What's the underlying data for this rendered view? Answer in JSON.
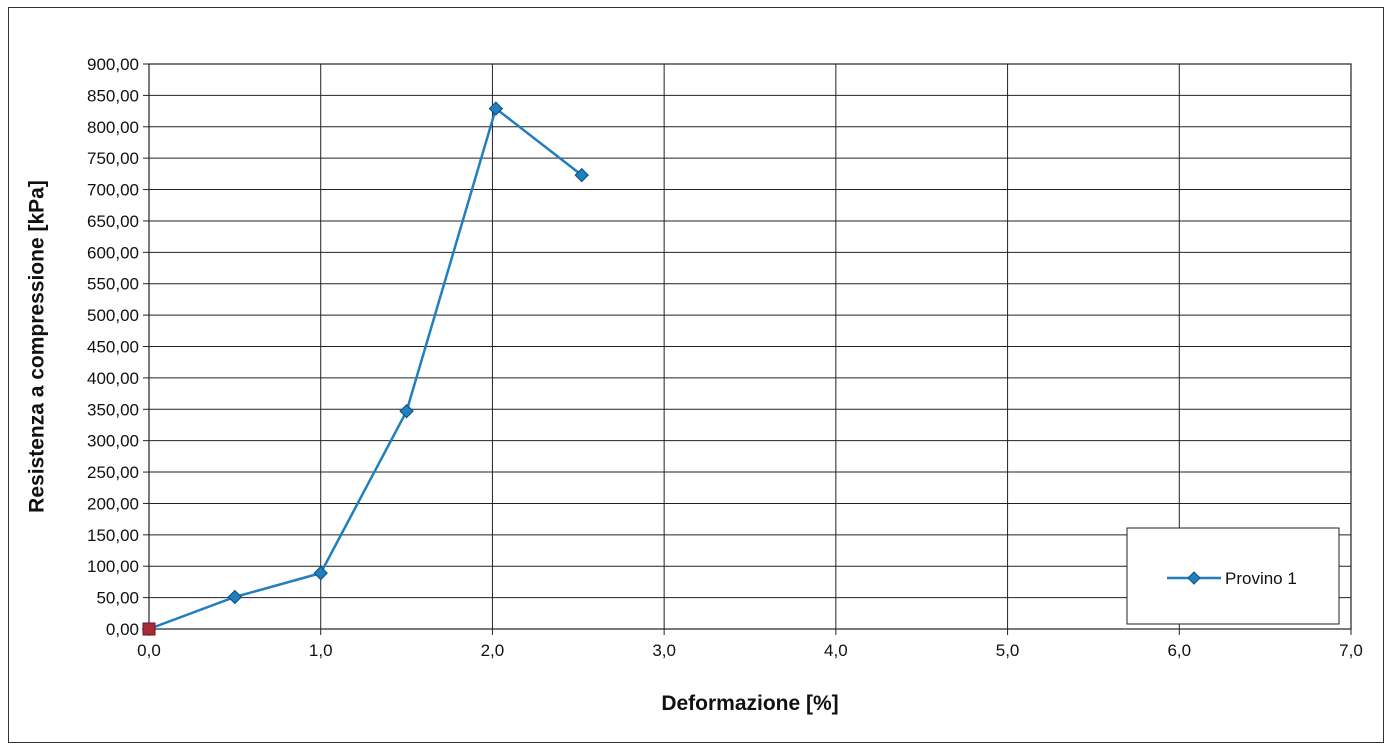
{
  "chart_data": {
    "type": "line",
    "title": "",
    "xlabel": "Deformazione [%]",
    "ylabel": "Resistenza a compressione [kPa]",
    "xlim": [
      0,
      7
    ],
    "ylim": [
      0,
      900
    ],
    "x_ticks": [
      0,
      1,
      2,
      3,
      4,
      5,
      6,
      7
    ],
    "x_tick_labels": [
      "0,0",
      "1,0",
      "2,0",
      "3,0",
      "4,0",
      "5,0",
      "6,0",
      "7,0"
    ],
    "y_ticks": [
      0,
      50,
      100,
      150,
      200,
      250,
      300,
      350,
      400,
      450,
      500,
      550,
      600,
      650,
      700,
      750,
      800,
      850,
      900
    ],
    "y_tick_labels": [
      "0,00",
      "50,00",
      "100,00",
      "150,00",
      "200,00",
      "250,00",
      "300,00",
      "350,00",
      "400,00",
      "450,00",
      "500,00",
      "550,00",
      "600,00",
      "650,00",
      "700,00",
      "750,00",
      "800,00",
      "850,00",
      "900,00"
    ],
    "grid": true,
    "legend_position": "bottom-right",
    "series": [
      {
        "name": "Provino 1",
        "color": "#1f7fbf",
        "marker": "diamond",
        "x": [
          0,
          0.5,
          1.0,
          1.5,
          2.02,
          2.52
        ],
        "y": [
          0,
          51,
          89,
          347,
          829,
          723
        ]
      }
    ],
    "start_marker": {
      "x": 0,
      "y": 0,
      "color": "#a52a3a",
      "marker": "square"
    }
  }
}
